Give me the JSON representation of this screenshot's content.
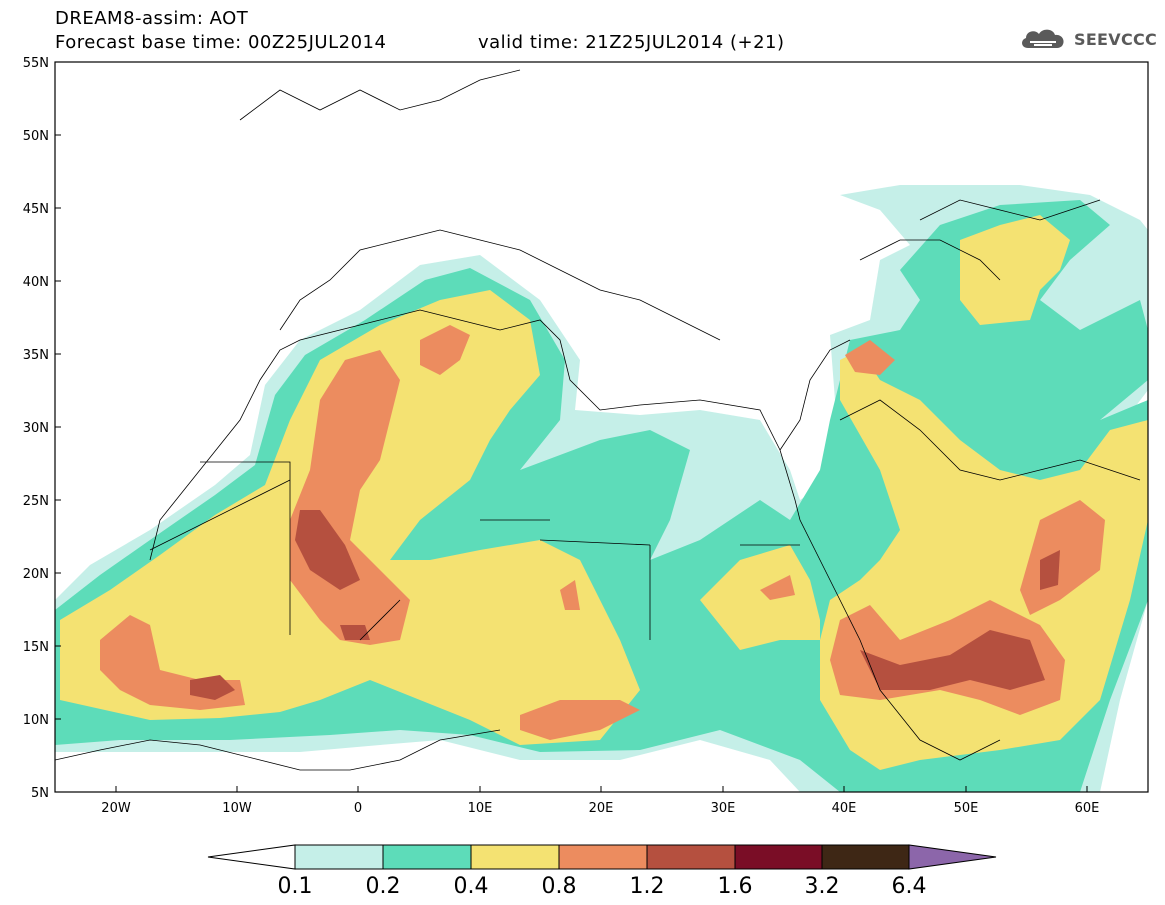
{
  "header": {
    "title": "DREAM8-assim: AOT",
    "base_time": "Forecast base time: 00Z25JUL2014",
    "valid_time": "valid time: 21Z25JUL2014 (+21)"
  },
  "logo": {
    "text": "SEEVCCC",
    "icon": "cloud-icon"
  },
  "map": {
    "projection": "equirectangular",
    "lon_range": [
      -25,
      65
    ],
    "lat_range": [
      5,
      55
    ],
    "lat_ticks": [
      "55N",
      "50N",
      "45N",
      "40N",
      "35N",
      "30N",
      "25N",
      "20N",
      "15N",
      "10N",
      "5N"
    ],
    "lon_ticks": [
      "20W",
      "10W",
      "0",
      "10E",
      "20E",
      "30E",
      "40E",
      "50E",
      "60E"
    ]
  },
  "colorbar": {
    "labels": [
      "0.1",
      "0.2",
      "0.4",
      "0.8",
      "1.2",
      "1.6",
      "3.2",
      "6.4"
    ],
    "colors": [
      "#c5efe8",
      "#5ddcb9",
      "#f4e272",
      "#ec8c5f",
      "#b5503f",
      "#7a0d26",
      "#3e2715",
      "#8c66aa"
    ],
    "below_min_color": "#ffffff"
  },
  "colors": {
    "water_low": "#c5efe8",
    "low": "#5ddcb9",
    "mid": "#f4e272",
    "high": "#ec8c5f",
    "very_high": "#b5503f"
  }
}
